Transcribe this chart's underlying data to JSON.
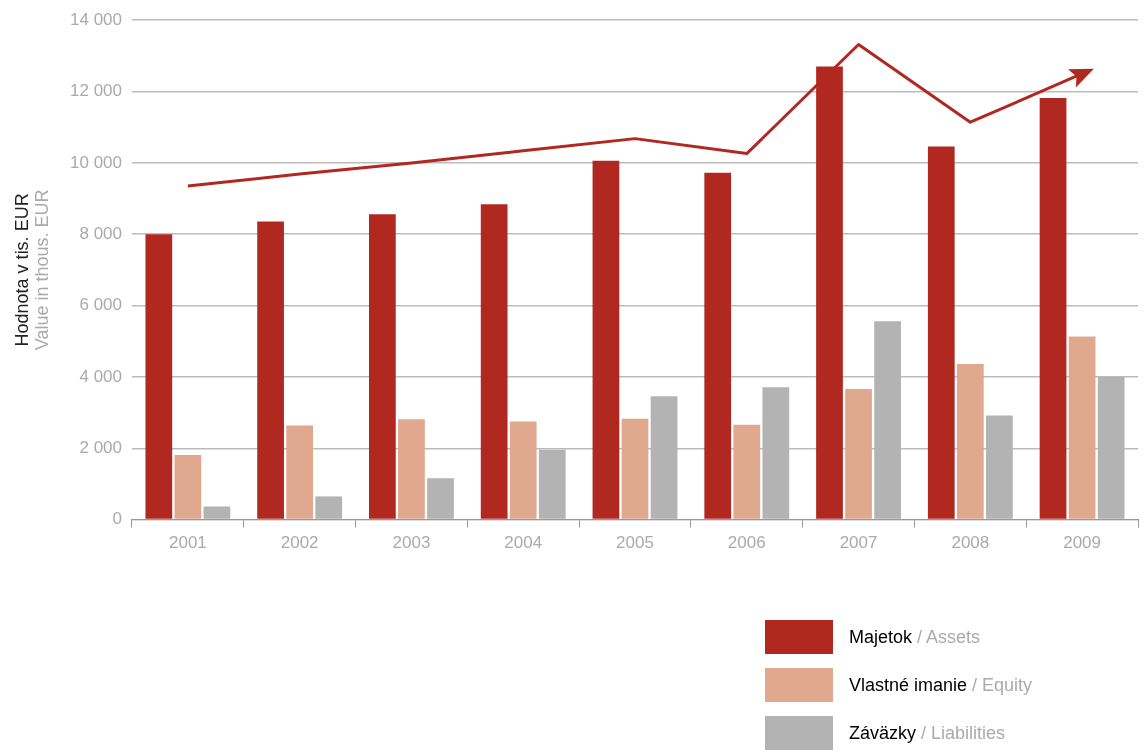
{
  "chart_data": {
    "type": "bar",
    "categories": [
      "2001",
      "2002",
      "2003",
      "2004",
      "2005",
      "2006",
      "2007",
      "2008",
      "2009"
    ],
    "series": [
      {
        "name": "Majetok / Assets",
        "color": "#b0281f",
        "values": [
          8000,
          8360,
          8560,
          8840,
          10060,
          9720,
          12700,
          10460,
          11820
        ]
      },
      {
        "name": "Vlastné imanie / Equity",
        "color": "#e0a88e",
        "values": [
          1810,
          2640,
          2810,
          2750,
          2830,
          2660,
          3660,
          4360,
          5130
        ]
      },
      {
        "name": "Záväzky / Liabilities",
        "color": "#b3b3b3",
        "values": [
          370,
          650,
          1160,
          1960,
          3460,
          3710,
          5560,
          2920,
          4000
        ]
      },
      {
        "type": "line",
        "color": "#b0281f",
        "values": [
          9350,
          9690,
          10000,
          10340,
          10680,
          10260,
          13320,
          11140,
          12500
        ]
      }
    ],
    "ylabel": "Hodnota v tis. EUR\nValue in thous. EUR",
    "ylim": [
      0,
      14000
    ],
    "yticks": [
      {
        "value": 0,
        "label": "0"
      },
      {
        "value": 2000,
        "label": "2 000"
      },
      {
        "value": 4000,
        "label": "4 000"
      },
      {
        "value": 6000,
        "label": "6 000"
      },
      {
        "value": 8000,
        "label": "8 000"
      },
      {
        "value": 10000,
        "label": "10 000"
      },
      {
        "value": 12000,
        "label": "12 000"
      },
      {
        "value": 14000,
        "label": "14 000"
      }
    ],
    "grid": "y",
    "legend": "bottom right"
  }
}
